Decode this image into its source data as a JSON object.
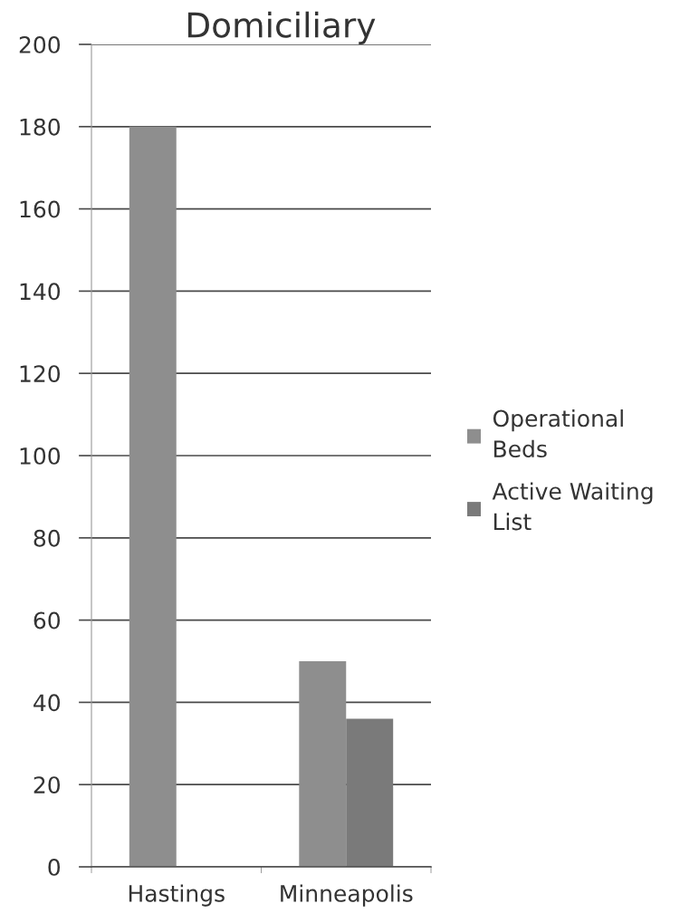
{
  "chart_data": {
    "type": "bar",
    "title": "Domiciliary",
    "categories": [
      "Hastings",
      "Minneapolis"
    ],
    "series": [
      {
        "name": "Operational\nBeds",
        "color": "#8e8e8e",
        "values": [
          180,
          50
        ]
      },
      {
        "name": "Active Waiting\nList",
        "color": "#7a7a7a",
        "values": [
          null,
          36
        ]
      }
    ],
    "ylim": [
      0,
      200
    ],
    "yticks": [
      0,
      20,
      40,
      60,
      80,
      100,
      120,
      140,
      160,
      180,
      200
    ],
    "grid": "y",
    "legend": "right"
  }
}
